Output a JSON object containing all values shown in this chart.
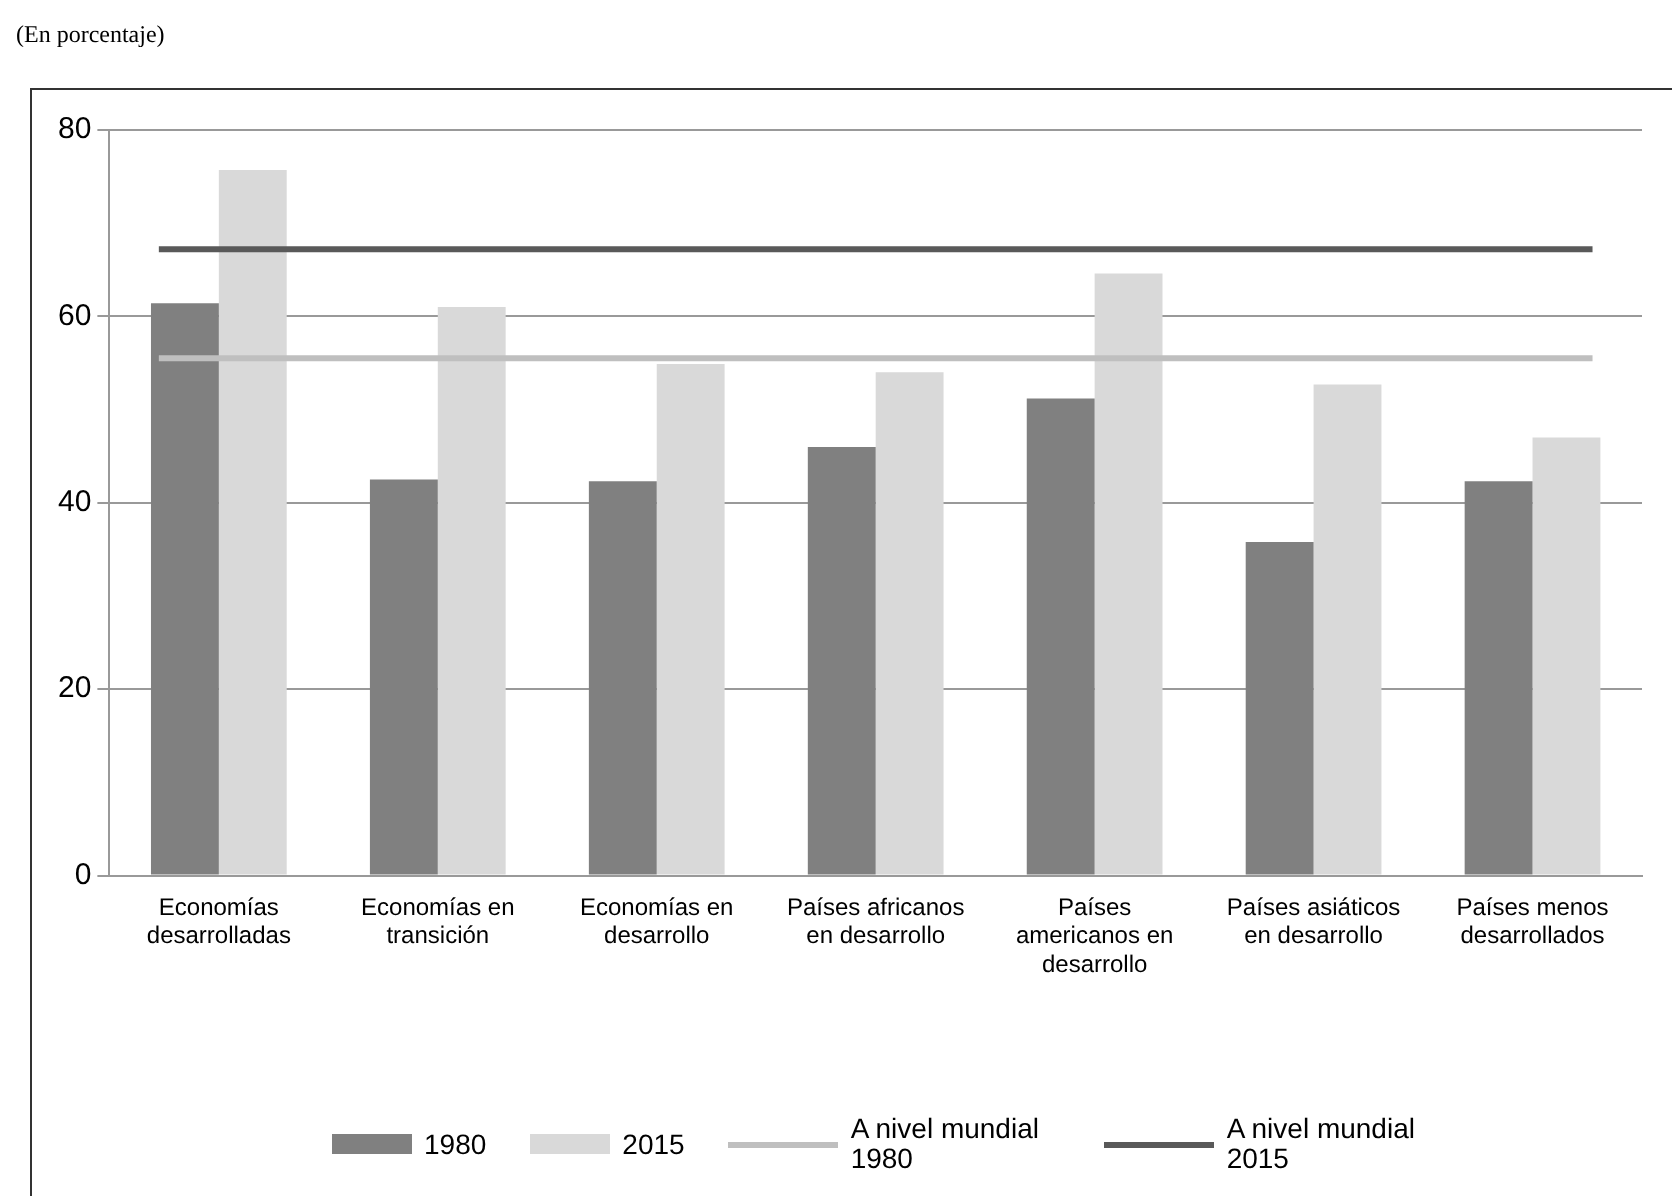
{
  "chart_data": {
    "type": "bar",
    "title": "(En porcentaje)",
    "categories": [
      "Economías desarrolladas",
      "Economías en transición",
      "Economías en desarrollo",
      "Países africanos en desarrollo",
      "Países americanos en desarrollo",
      "Países asiáticos en desarrollo",
      "Países menos desarrollados"
    ],
    "series": [
      {
        "name": "1980",
        "color": "#808080",
        "values": [
          61.4,
          42.5,
          42.3,
          46,
          51.2,
          35.8,
          42.3
        ]
      },
      {
        "name": "2015",
        "color": "#d9d9d9",
        "values": [
          75.7,
          61,
          54.9,
          54,
          64.6,
          52.7,
          47
        ]
      }
    ],
    "ref_lines": [
      {
        "axis": "y",
        "value": 55.5,
        "label": "A nivel mundial 1980",
        "color": "#bfbfbf"
      },
      {
        "axis": "y",
        "value": 67.2,
        "label": "A nivel mundial 2015",
        "color": "#595959"
      }
    ],
    "ylim": [
      0,
      80
    ],
    "yticks": [
      0,
      20,
      40,
      60,
      80
    ],
    "grid": "y",
    "legend": "bottom"
  }
}
